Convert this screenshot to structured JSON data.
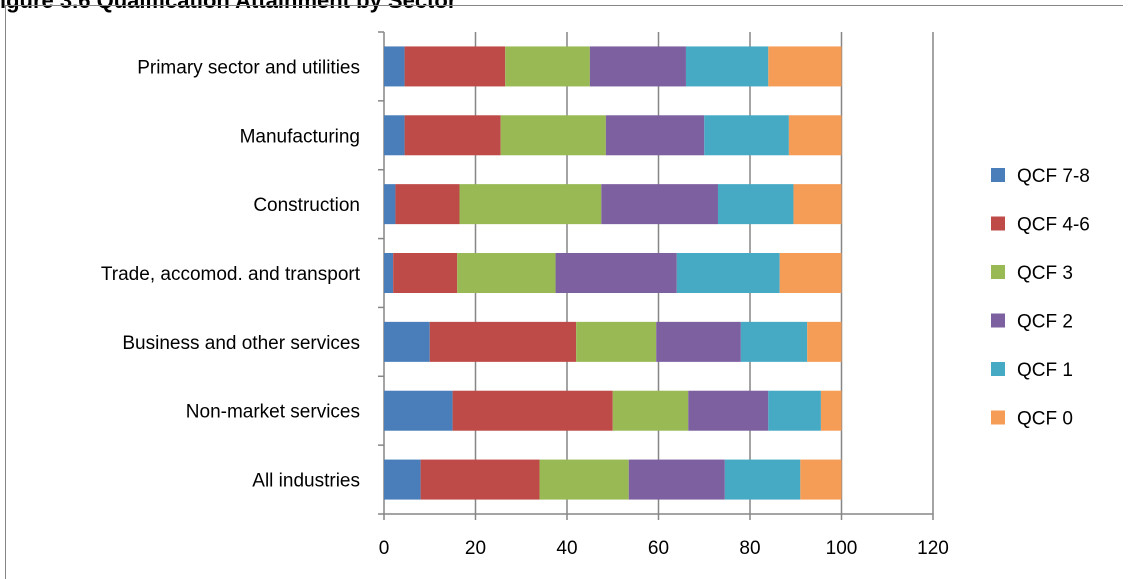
{
  "title_fragment": "igure 3.6 Qualification Attainment by Sector",
  "chart_data": {
    "type": "bar",
    "orientation": "horizontal",
    "stacked": true,
    "title": "",
    "xlabel": "",
    "ylabel": "",
    "xlim": [
      0,
      120
    ],
    "x_ticks": [
      "0",
      "20",
      "40",
      "60",
      "80",
      "100",
      "120"
    ],
    "grid": true,
    "legend_position": "right",
    "categories": [
      "Primary sector and utilities",
      "Manufacturing",
      "Construction",
      "Trade, accomod. and transport",
      "Business and other services",
      "Non-market services",
      "All industries"
    ],
    "series": [
      {
        "name": "QCF 7-8",
        "color": "#4a7ebb",
        "values": [
          4.5,
          4.5,
          2.5,
          2,
          10,
          15,
          8
        ]
      },
      {
        "name": "QCF 4-6",
        "color": "#be4b48",
        "values": [
          22,
          21,
          14,
          14,
          32,
          35,
          26
        ]
      },
      {
        "name": "QCF 3",
        "color": "#98b954",
        "values": [
          18.5,
          23,
          31,
          21.5,
          17.5,
          16.5,
          19.5
        ]
      },
      {
        "name": "QCF 2",
        "color": "#7d60a0",
        "values": [
          21,
          21.5,
          25.5,
          26.5,
          18.5,
          17.5,
          21
        ]
      },
      {
        "name": "QCF 1",
        "color": "#46aac5",
        "values": [
          18,
          18.5,
          16.5,
          22.5,
          14.5,
          11.5,
          16.5
        ]
      },
      {
        "name": "QCF 0",
        "color": "#f59d56",
        "values": [
          16,
          11.5,
          10.5,
          13.5,
          7.5,
          4.5,
          9
        ]
      }
    ]
  }
}
